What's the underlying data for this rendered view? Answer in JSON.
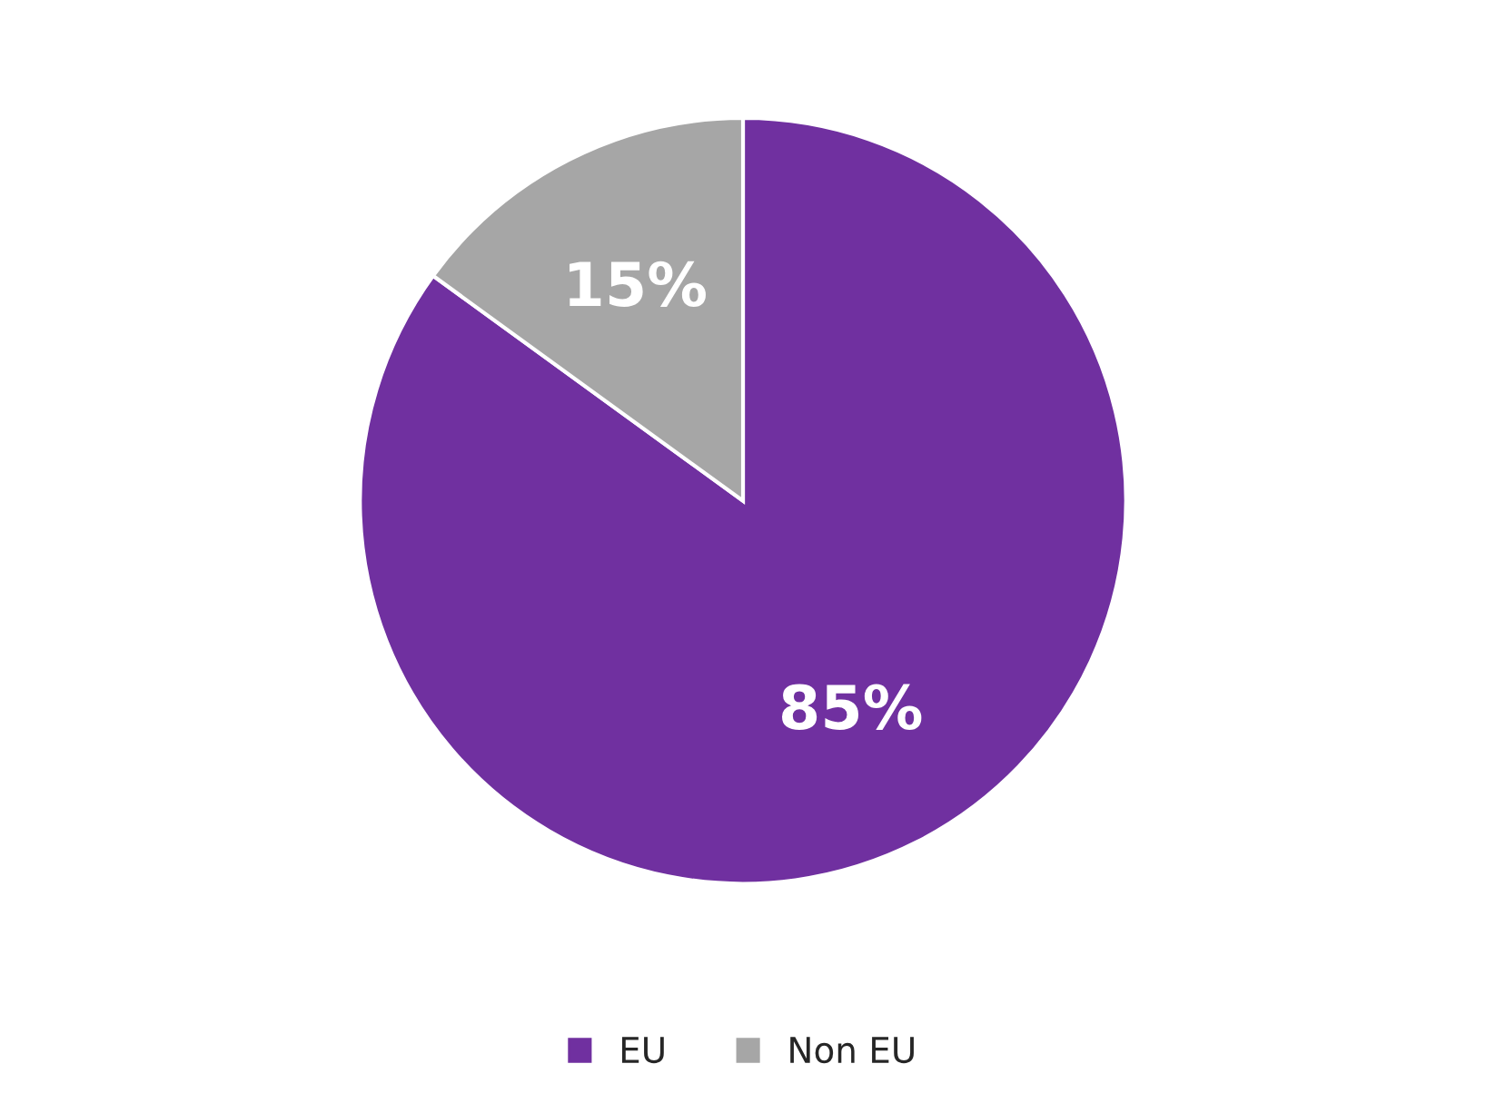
{
  "chart_data": {
    "type": "pie",
    "categories": [
      "EU",
      "Non EU"
    ],
    "values": [
      85,
      15
    ],
    "colors": [
      "#7030a0",
      "#a6a6a6"
    ],
    "value_labels": [
      "85%",
      "15%"
    ],
    "legend": "bottom"
  }
}
